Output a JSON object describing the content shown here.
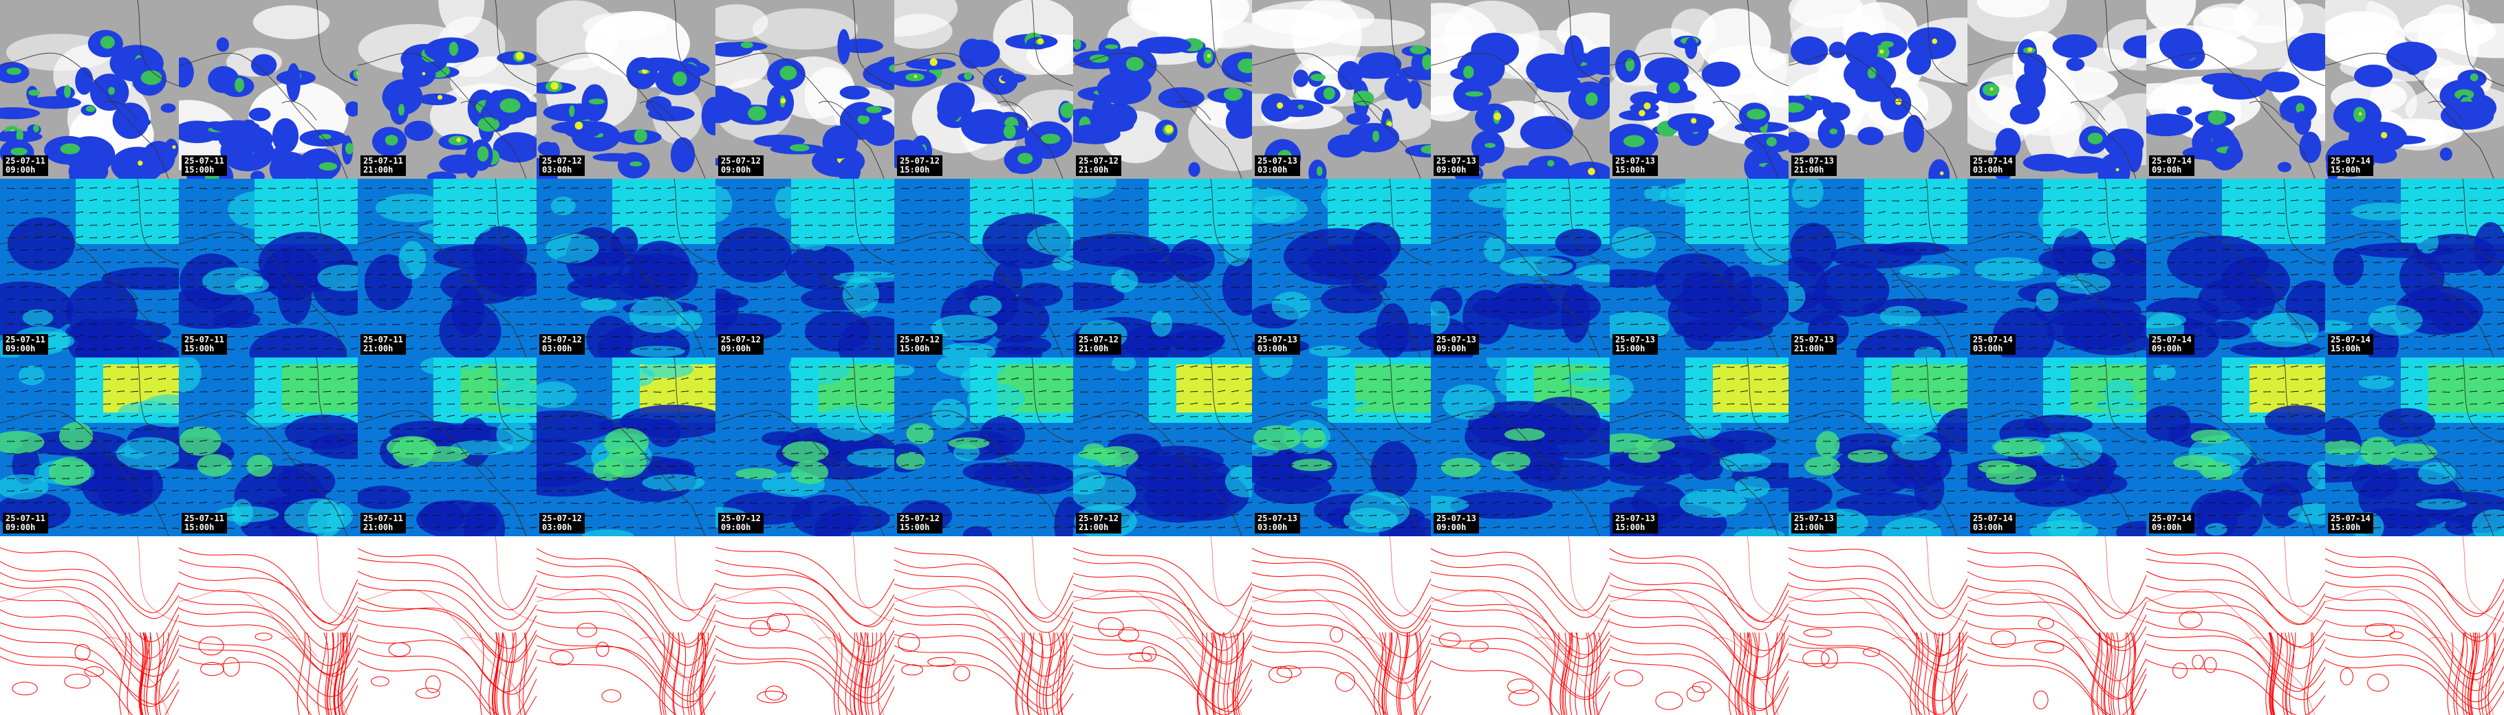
{
  "rows": [
    {
      "name": "precipitation-cloud",
      "background": "#a9a9a9",
      "has_stamp": true
    },
    {
      "name": "wind-low-level",
      "background": "#0a78d8",
      "has_stamp": true
    },
    {
      "name": "wind-upper-level",
      "background": "#0a78d8",
      "has_stamp": true
    },
    {
      "name": "pressure-contours",
      "background": "#ffffff",
      "has_stamp": false
    }
  ],
  "colors": {
    "cloud_gray": "#a9a9a9",
    "cloud_white": "#ffffff",
    "precip_blue": "#1f3fe0",
    "precip_green": "#39c05a",
    "precip_yellow": "#e8ef2a",
    "wind_navy": "#0a1fb4",
    "wind_blue": "#0a78d8",
    "wind_cyan": "#18d8e8",
    "wind_green": "#47e07a",
    "wind_yellow": "#d8f038",
    "coast": "#333333",
    "vector": "#111111",
    "isobar": "#ff0000"
  },
  "times": [
    {
      "date": "25-07-11",
      "hour": "09:00h"
    },
    {
      "date": "25-07-11",
      "hour": "15:00h"
    },
    {
      "date": "25-07-11",
      "hour": "21:00h"
    },
    {
      "date": "25-07-12",
      "hour": "03:00h"
    },
    {
      "date": "25-07-12",
      "hour": "09:00h"
    },
    {
      "date": "25-07-12",
      "hour": "15:00h"
    },
    {
      "date": "25-07-12",
      "hour": "21:00h"
    },
    {
      "date": "25-07-13",
      "hour": "03:00h"
    },
    {
      "date": "25-07-13",
      "hour": "09:00h"
    },
    {
      "date": "25-07-13",
      "hour": "15:00h"
    },
    {
      "date": "25-07-13",
      "hour": "21:00h"
    },
    {
      "date": "25-07-14",
      "hour": "03:00h"
    },
    {
      "date": "25-07-14",
      "hour": "09:00h"
    },
    {
      "date": "25-07-14",
      "hour": "15:00h"
    }
  ]
}
